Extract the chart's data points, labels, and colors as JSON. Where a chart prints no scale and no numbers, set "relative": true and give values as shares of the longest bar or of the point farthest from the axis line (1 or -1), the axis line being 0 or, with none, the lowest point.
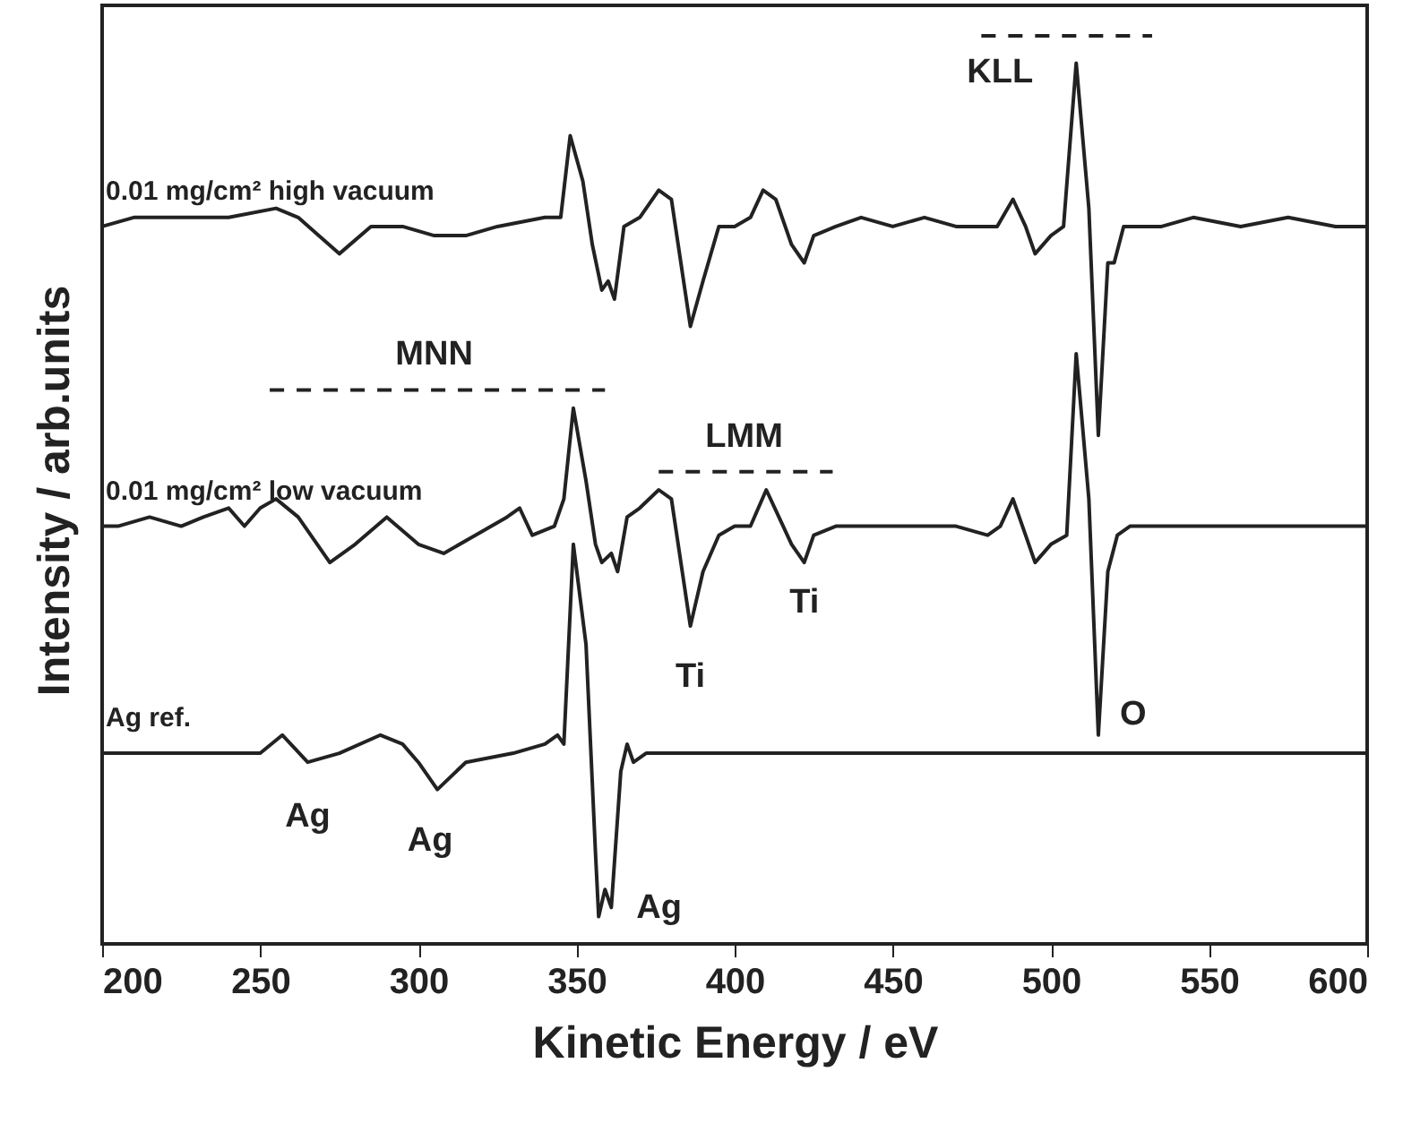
{
  "chart_data": {
    "type": "line",
    "relative": true,
    "xlabel": "Kinetic Energy / eV",
    "ylabel": "Intensity / arb.units",
    "xlim": [
      200,
      600
    ],
    "xticks": [
      200,
      250,
      300,
      350,
      400,
      450,
      500,
      550,
      600
    ],
    "grid": false,
    "legend": false,
    "marker": "none",
    "line_style": "solid",
    "series": [
      {
        "name": "0.01 mg/cm² high vacuum",
        "color": "#222222",
        "x": [
          200,
          210,
          225,
          240,
          255,
          262,
          275,
          285,
          295,
          305,
          315,
          325,
          340,
          345,
          348,
          352,
          355,
          358,
          360,
          362,
          365,
          370,
          376,
          380,
          386,
          390,
          395,
          400,
          405,
          409,
          413,
          418,
          422,
          425,
          432,
          440,
          450,
          460,
          470,
          480,
          483,
          488,
          492,
          495,
          500,
          504,
          508,
          512,
          515,
          518,
          520,
          523,
          535,
          545,
          560,
          575,
          590,
          600
        ],
        "values": [
          0.79,
          0.8,
          0.8,
          0.8,
          0.81,
          0.8,
          0.76,
          0.79,
          0.79,
          0.78,
          0.78,
          0.79,
          0.8,
          0.8,
          0.89,
          0.84,
          0.77,
          0.72,
          0.73,
          0.71,
          0.79,
          0.8,
          0.83,
          0.82,
          0.68,
          0.73,
          0.79,
          0.79,
          0.8,
          0.83,
          0.82,
          0.77,
          0.75,
          0.78,
          0.79,
          0.8,
          0.79,
          0.8,
          0.79,
          0.79,
          0.79,
          0.82,
          0.79,
          0.76,
          0.78,
          0.79,
          0.97,
          0.81,
          0.56,
          0.75,
          0.75,
          0.79,
          0.79,
          0.8,
          0.79,
          0.8,
          0.79,
          0.79
        ]
      },
      {
        "name": "0.01 mg/cm² low vacuum",
        "color": "#222222",
        "x": [
          200,
          205,
          215,
          225,
          232,
          240,
          245,
          250,
          255,
          262,
          272,
          280,
          290,
          300,
          308,
          318,
          328,
          332,
          336,
          343,
          346,
          349,
          353,
          356,
          358,
          361,
          363,
          366,
          370,
          376,
          380,
          386,
          390,
          395,
          400,
          405,
          410,
          414,
          418,
          422,
          425,
          432,
          440,
          450,
          460,
          470,
          480,
          484,
          488,
          492,
          495,
          500,
          505,
          508,
          512,
          515,
          518,
          521,
          525,
          535,
          545,
          560,
          575,
          590,
          600
        ],
        "values": [
          0.46,
          0.46,
          0.47,
          0.46,
          0.47,
          0.48,
          0.46,
          0.48,
          0.49,
          0.47,
          0.42,
          0.44,
          0.47,
          0.44,
          0.43,
          0.45,
          0.47,
          0.48,
          0.45,
          0.46,
          0.49,
          0.59,
          0.51,
          0.44,
          0.42,
          0.43,
          0.41,
          0.47,
          0.48,
          0.5,
          0.49,
          0.35,
          0.41,
          0.45,
          0.46,
          0.46,
          0.5,
          0.47,
          0.44,
          0.42,
          0.45,
          0.46,
          0.46,
          0.46,
          0.46,
          0.46,
          0.45,
          0.46,
          0.49,
          0.45,
          0.42,
          0.44,
          0.45,
          0.65,
          0.49,
          0.23,
          0.41,
          0.45,
          0.46,
          0.46,
          0.46,
          0.46,
          0.46,
          0.46,
          0.46
        ]
      },
      {
        "name": "Ag ref.",
        "color": "#222222",
        "x": [
          200,
          220,
          240,
          250,
          257,
          265,
          275,
          288,
          295,
          300,
          306,
          315,
          330,
          340,
          344,
          346,
          349,
          353,
          356,
          357,
          359,
          361,
          364,
          366,
          368,
          372,
          400,
          450,
          500,
          510,
          550,
          600
        ],
        "values": [
          0.21,
          0.21,
          0.21,
          0.21,
          0.23,
          0.2,
          0.21,
          0.23,
          0.22,
          0.2,
          0.17,
          0.2,
          0.21,
          0.22,
          0.23,
          0.22,
          0.44,
          0.33,
          0.1,
          0.03,
          0.06,
          0.04,
          0.19,
          0.22,
          0.2,
          0.21,
          0.21,
          0.21,
          0.21,
          0.21,
          0.21,
          0.21
        ]
      },
      {
        "color": "#222222",
        "line_style": "dashed",
        "x": [
          253,
          359
        ],
        "values": [
          0.61,
          0.61
        ]
      },
      {
        "color": "#222222",
        "line_style": "dashed",
        "x": [
          376,
          431
        ],
        "values": [
          0.52,
          0.52
        ]
      },
      {
        "color": "#222222",
        "line_style": "dashed",
        "x": [
          478,
          532
        ],
        "values": [
          1.0,
          1.0
        ]
      }
    ],
    "annotations": [
      {
        "text": "MNN",
        "x": 305,
        "y": 0.61
      },
      {
        "text": "LMM",
        "x": 403,
        "y": 0.52
      },
      {
        "text": "KLL",
        "x": 478,
        "y": 1.0
      },
      {
        "text": "Ti",
        "x": 386,
        "y": 0.35
      },
      {
        "text": "Ti",
        "x": 422,
        "y": 0.42
      },
      {
        "text": "O",
        "x": 515,
        "y": 0.23
      },
      {
        "text": "Ag",
        "x": 265,
        "y": 0.2
      },
      {
        "text": "Ag",
        "x": 306,
        "y": 0.17
      },
      {
        "text": "Ag",
        "x": 361,
        "y": 0.04
      }
    ]
  }
}
